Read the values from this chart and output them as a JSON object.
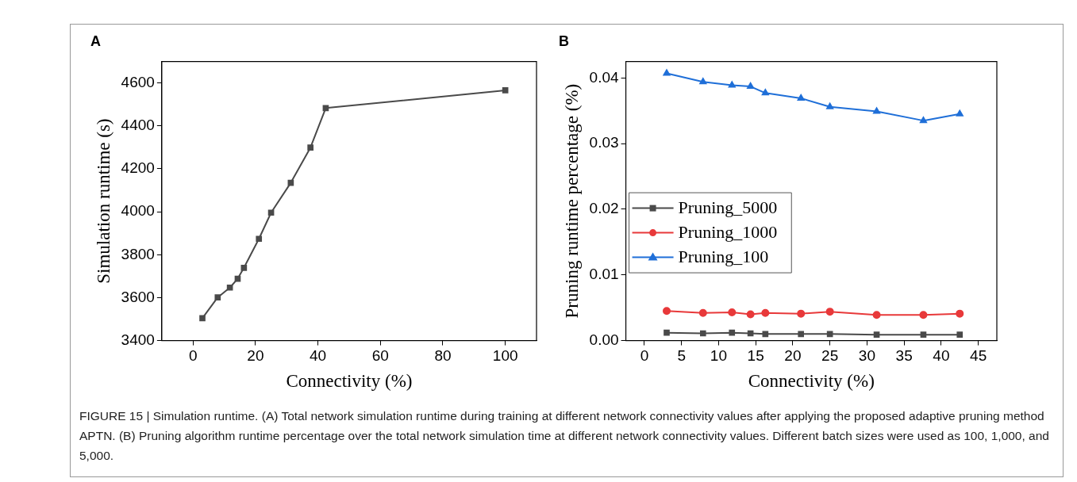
{
  "chart_data": [
    {
      "type": "line",
      "title": "A",
      "xlabel": "Connectivity (%)",
      "ylabel": "Simulation runtime (s)",
      "x": [
        3,
        7.9,
        11.8,
        14.3,
        16.3,
        21.1,
        25,
        31.3,
        37.6,
        42.5,
        100
      ],
      "series": [
        {
          "color": "#4a4a4a",
          "marker": "square",
          "values": [
            3504,
            3601,
            3647,
            3688,
            3739,
            3874,
            3996,
            4135,
            4299,
            4483,
            4566
          ]
        }
      ],
      "xlim": [
        -10,
        110
      ],
      "xticks": [
        0,
        20,
        40,
        60,
        80,
        100
      ],
      "ylim": [
        3400,
        4700
      ],
      "yticks": [
        3400,
        3600,
        3800,
        4000,
        4200,
        4400,
        4600
      ],
      "grid": false,
      "legend": false,
      "annotations": [
        "FIGURE 15 | Simulation runtime. (A) Total network simulation runtime during training at different network connectivity values after applying the proposed adaptive pruning method APTN. (B) Pruning algorithm runtime percentage over the total network simulation time at different network connectivity values. Different batch sizes were used as 100, 1,000, and 5,000."
      ]
    },
    {
      "type": "line",
      "title": "B",
      "xlabel": "Connectivity (%)",
      "ylabel": "Pruning runtime percentage (%)",
      "x": [
        3,
        7.9,
        11.8,
        14.3,
        16.3,
        21.1,
        25,
        31.3,
        37.6,
        42.5
      ],
      "series": [
        {
          "name": "Pruning_5000",
          "color": "#4a4a4a",
          "marker": "square",
          "values": [
            0.0012,
            0.0011,
            0.0012,
            0.0011,
            0.001,
            0.001,
            0.001,
            0.0009,
            0.0009,
            0.0009
          ]
        },
        {
          "name": "Pruning_1000",
          "color": "#e8393a",
          "marker": "circle",
          "values": [
            0.0045,
            0.0042,
            0.0043,
            0.004,
            0.0042,
            0.0041,
            0.0044,
            0.0039,
            0.0039,
            0.0041
          ]
        },
        {
          "name": "Pruning_100",
          "color": "#1f6fd8",
          "marker": "triangle",
          "values": [
            0.0407,
            0.0394,
            0.0389,
            0.0387,
            0.0377,
            0.0369,
            0.0356,
            0.0349,
            0.0335,
            0.0345
          ]
        }
      ],
      "xlim": [
        -2.5,
        47.5
      ],
      "xticks": [
        0,
        5,
        10,
        15,
        20,
        25,
        30,
        35,
        40,
        45
      ],
      "ylim": [
        0,
        0.0425
      ],
      "yticks": [
        {
          "value": 0,
          "label": "0.00"
        },
        {
          "value": 0.01,
          "label": "0.01"
        },
        {
          "value": 0.02,
          "label": "0.02"
        },
        {
          "value": 0.03,
          "label": "0.03"
        },
        {
          "value": 0.04,
          "label": "0.04"
        }
      ],
      "grid": false,
      "legend": "left"
    }
  ]
}
